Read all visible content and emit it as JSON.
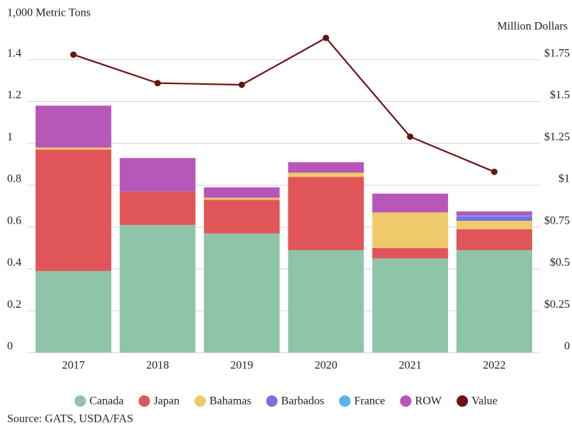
{
  "chart_data": {
    "type": "bar",
    "stacked": true,
    "y_label": "1,000 Metric Tons",
    "y2_label": "Million Dollars",
    "source": "Source: GATS, USDA/FAS",
    "categories": [
      "2017",
      "2018",
      "2019",
      "2020",
      "2021",
      "2022"
    ],
    "series": [
      {
        "name": "Canada",
        "color": "#8fc4a8",
        "values": [
          0.39,
          0.61,
          0.57,
          0.49,
          0.45,
          0.49
        ]
      },
      {
        "name": "Japan",
        "color": "#e05658",
        "values": [
          0.58,
          0.16,
          0.16,
          0.35,
          0.05,
          0.1
        ]
      },
      {
        "name": "Bahamas",
        "color": "#f0c96a",
        "values": [
          0.01,
          0,
          0.01,
          0.02,
          0.17,
          0.04
        ]
      },
      {
        "name": "Barbados",
        "color": "#7b6fe0",
        "values": [
          0,
          0,
          0,
          0,
          0,
          0.02
        ]
      },
      {
        "name": "France",
        "color": "#5ab4e8",
        "values": [
          0,
          0,
          0,
          0,
          0,
          0.005
        ]
      },
      {
        "name": "ROW",
        "color": "#b757b8",
        "values": [
          0.2,
          0.16,
          0.05,
          0.05,
          0.09,
          0.02
        ]
      },
      {
        "name": "Value",
        "color": "#6b1416",
        "type": "line",
        "axis": "y2",
        "values": [
          1.78,
          1.61,
          1.6,
          1.88,
          1.29,
          1.08
        ]
      }
    ],
    "ylim": [
      0,
      1.6
    ],
    "yticks": [
      0,
      0.2,
      0.4,
      0.6,
      0.8,
      1,
      1.2,
      1.4
    ],
    "y2lim": [
      0,
      2
    ],
    "y2ticks": [
      0,
      {
        "value": 0.25,
        "label": "$0.25"
      },
      {
        "value": 0.5,
        "label": "$0.5"
      },
      {
        "value": 0.75,
        "label": "$0.75"
      },
      {
        "value": 1,
        "label": "$1"
      },
      {
        "value": 1.25,
        "label": "$1.25"
      },
      {
        "value": 1.5,
        "label": "$1.5"
      },
      {
        "value": 1.75,
        "label": "$1.75"
      }
    ],
    "grid": true,
    "legend": "bottom"
  }
}
